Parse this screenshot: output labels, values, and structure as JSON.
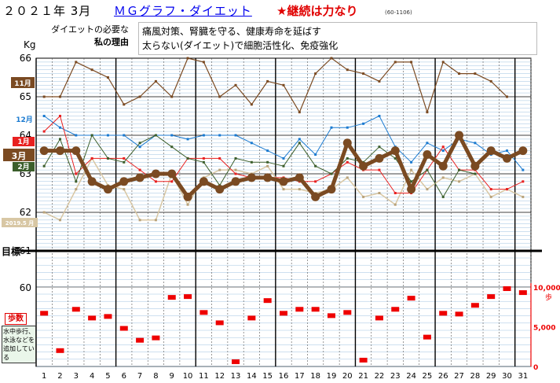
{
  "header": {
    "year_month": "２０２１年 3月",
    "title": "ＭＧグラフ・ダイエット",
    "motto": "★継続は力なり",
    "code": "(60-1106)"
  },
  "reason": {
    "label_a": "ダイエットの必要な",
    "label_b": "私の理由",
    "line1": "痛風対策、腎臓を守る、健康寿命を延ばす",
    "line2": "太らない(ダイエット)で細胞活性化、免疫強化"
  },
  "units": {
    "weight": "Kg",
    "steps_badge": "歩数",
    "steps_note": "水中歩行、水泳などを追加している"
  },
  "goal_label": "目標",
  "colors": {
    "mar": "#7a4a22",
    "nov": "#7a4a22",
    "dec": "#1a7ad0",
    "jan": "#e82020",
    "feb": "#3b5e2b",
    "may2019": "#d8c7a4",
    "steps": "#ee0000",
    "grid": "#9ec2e0"
  },
  "chart_data": [
    {
      "type": "line",
      "title": "",
      "xlabel": "",
      "ylabel": "Kg",
      "x": [
        1,
        2,
        3,
        4,
        5,
        6,
        7,
        8,
        9,
        10,
        11,
        12,
        13,
        14,
        15,
        16,
        17,
        18,
        19,
        20,
        21,
        22,
        23,
        24,
        25,
        26,
        27,
        28,
        29,
        30,
        31
      ],
      "ylim": [
        61,
        66
      ],
      "yticks": [
        "62",
        "63",
        "64",
        "65",
        "66"
      ],
      "grid": true,
      "series": [
        {
          "name": "11月",
          "color_key": "nov",
          "width": 1.2,
          "values": [
            65.0,
            65.0,
            65.9,
            65.7,
            65.5,
            64.8,
            65.0,
            65.4,
            65.0,
            66.0,
            65.9,
            65.0,
            65.3,
            64.8,
            65.4,
            65.3,
            64.6,
            65.6,
            66.0,
            65.7,
            65.6,
            65.4,
            65.9,
            65.9,
            64.6,
            65.9,
            65.6,
            65.6,
            65.4,
            65.0,
            null
          ]
        },
        {
          "name": "12月",
          "color_key": "dec",
          "width": 1.0,
          "values": [
            64.5,
            64.2,
            64.0,
            64.0,
            64.0,
            64.0,
            63.7,
            64.0,
            64.0,
            63.9,
            64.0,
            64.0,
            64.0,
            63.8,
            63.6,
            63.4,
            63.9,
            63.5,
            64.2,
            64.2,
            64.3,
            64.5,
            63.7,
            63.3,
            63.8,
            63.6,
            63.9,
            63.8,
            63.5,
            63.6,
            63.1
          ]
        },
        {
          "name": "1月",
          "color_key": "jan",
          "width": 1.0,
          "values": [
            64.1,
            64.5,
            63.0,
            63.4,
            63.4,
            63.4,
            63.1,
            62.8,
            62.8,
            63.4,
            63.4,
            63.4,
            63.0,
            62.9,
            62.9,
            62.9,
            62.8,
            62.8,
            63.0,
            63.3,
            63.1,
            63.1,
            62.5,
            62.5,
            63.1,
            63.7,
            63.1,
            63.1,
            62.6,
            62.6,
            62.8
          ]
        },
        {
          "name": "2月",
          "color_key": "feb",
          "width": 1.0,
          "values": [
            63.2,
            63.9,
            62.8,
            64.0,
            63.4,
            63.3,
            63.8,
            64.0,
            63.7,
            63.4,
            63.3,
            62.7,
            63.4,
            63.3,
            63.3,
            63.2,
            63.8,
            63.2,
            63.0,
            63.4,
            63.3,
            63.7,
            63.4,
            62.8,
            63.1,
            62.4,
            63.1,
            63.0,
            null,
            null,
            null
          ]
        },
        {
          "name": "3月",
          "color_key": "mar",
          "width": 5.0,
          "values": [
            63.6,
            63.6,
            63.6,
            62.8,
            62.6,
            62.8,
            62.9,
            63.0,
            63.0,
            62.4,
            62.8,
            62.6,
            62.8,
            62.9,
            62.9,
            62.8,
            62.9,
            62.4,
            62.6,
            63.8,
            63.2,
            63.4,
            63.6,
            62.6,
            63.5,
            63.2,
            64.0,
            63.2,
            63.6,
            63.4,
            63.6
          ]
        },
        {
          "name": "2019.5 月",
          "color_key": "may2019",
          "width": 1.5,
          "values": [
            62.0,
            61.8,
            62.6,
            63.4,
            62.7,
            62.6,
            61.8,
            61.8,
            63.0,
            62.2,
            62.9,
            63.1,
            63.1,
            63.0,
            63.2,
            62.6,
            62.6,
            62.5,
            62.6,
            62.9,
            62.4,
            62.5,
            62.2,
            63.1,
            62.6,
            62.9,
            62.8,
            63.0,
            62.4,
            62.6,
            62.4
          ]
        }
      ],
      "legend": "left"
    },
    {
      "type": "scatter",
      "title": "",
      "xlabel": "",
      "ylabel": "歩",
      "x": [
        1,
        2,
        3,
        4,
        5,
        6,
        7,
        8,
        9,
        10,
        11,
        12,
        13,
        14,
        15,
        16,
        17,
        18,
        19,
        20,
        21,
        22,
        23,
        24,
        25,
        26,
        27,
        28,
        29,
        30,
        31
      ],
      "ylim": [
        0,
        10000
      ],
      "yticks": [
        "0",
        "5,000",
        "10,000"
      ],
      "series": [
        {
          "name": "歩数",
          "color_key": "steps",
          "values": [
            6700,
            2000,
            7200,
            6100,
            6300,
            4800,
            3300,
            3600,
            8700,
            8800,
            6800,
            5500,
            600,
            6100,
            8300,
            6700,
            7200,
            7200,
            6400,
            6800,
            800,
            6100,
            7200,
            8600,
            3700,
            6700,
            6600,
            7700,
            8800,
            9800,
            9300
          ]
        }
      ]
    }
  ],
  "left_axis": {
    "ticks": [
      "60",
      "61"
    ]
  },
  "x_labels": [
    "1",
    "2",
    "3",
    "4",
    "5",
    "6",
    "7",
    "8",
    "9",
    "10",
    "11",
    "12",
    "13",
    "14",
    "15",
    "16",
    "17",
    "18",
    "19",
    "20",
    "21",
    "22",
    "23",
    "24",
    "25",
    "26",
    "27",
    "28",
    "29",
    "30",
    "31"
  ]
}
